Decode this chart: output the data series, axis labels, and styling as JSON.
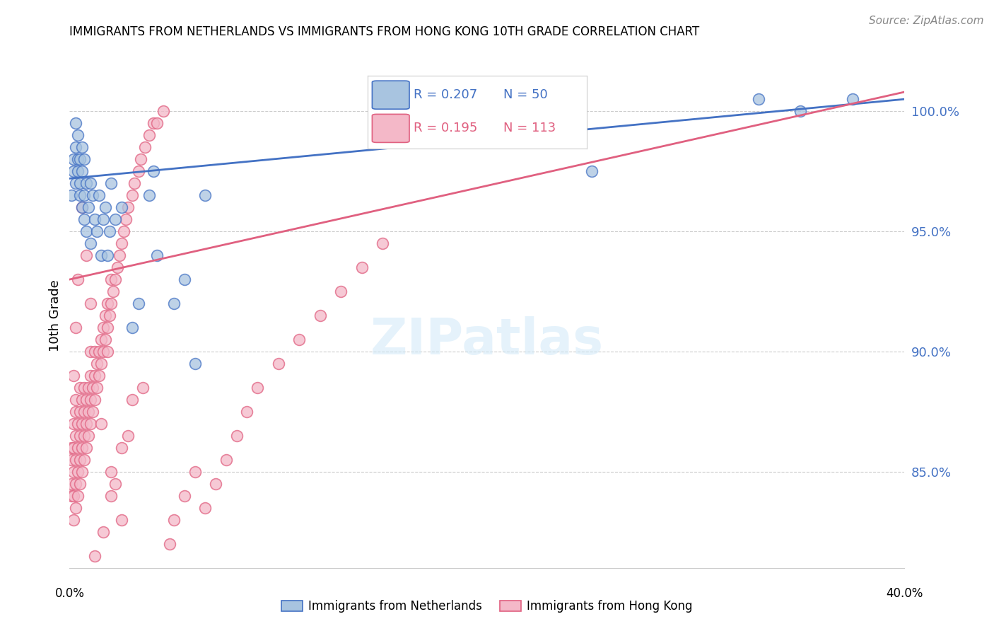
{
  "title": "IMMIGRANTS FROM NETHERLANDS VS IMMIGRANTS FROM HONG KONG 10TH GRADE CORRELATION CHART",
  "source": "Source: ZipAtlas.com",
  "ylabel": "10th Grade",
  "xlim": [
    0.0,
    0.4
  ],
  "ylim": [
    81.0,
    102.0
  ],
  "netherlands_color": "#a8c4e0",
  "netherlands_edge_color": "#4472c4",
  "hk_color": "#f4b8c8",
  "hk_edge_color": "#e06080",
  "netherlands_line_color": "#4472c4",
  "hk_line_color": "#e06080",
  "y_tick_vals": [
    85.0,
    90.0,
    95.0,
    100.0
  ],
  "y_tick_labels": [
    "85.0%",
    "90.0%",
    "95.0%",
    "100.0%"
  ],
  "nl_line_x": [
    0.0,
    0.4
  ],
  "nl_line_y": [
    97.2,
    100.5
  ],
  "hk_line_x": [
    0.0,
    0.4
  ],
  "hk_line_y": [
    93.0,
    100.8
  ],
  "netherlands_x": [
    0.001,
    0.002,
    0.002,
    0.003,
    0.003,
    0.003,
    0.004,
    0.004,
    0.004,
    0.005,
    0.005,
    0.005,
    0.006,
    0.006,
    0.006,
    0.007,
    0.007,
    0.007,
    0.008,
    0.008,
    0.009,
    0.01,
    0.01,
    0.011,
    0.012,
    0.013,
    0.014,
    0.015,
    0.016,
    0.017,
    0.018,
    0.019,
    0.02,
    0.022,
    0.025,
    0.03,
    0.033,
    0.038,
    0.04,
    0.042,
    0.05,
    0.055,
    0.06,
    0.065,
    0.15,
    0.18,
    0.25,
    0.33,
    0.35,
    0.375
  ],
  "netherlands_y": [
    96.5,
    97.5,
    98.0,
    97.0,
    98.5,
    99.5,
    97.5,
    98.0,
    99.0,
    96.5,
    97.0,
    98.0,
    96.0,
    97.5,
    98.5,
    95.5,
    96.5,
    98.0,
    95.0,
    97.0,
    96.0,
    94.5,
    97.0,
    96.5,
    95.5,
    95.0,
    96.5,
    94.0,
    95.5,
    96.0,
    94.0,
    95.0,
    97.0,
    95.5,
    96.0,
    91.0,
    92.0,
    96.5,
    97.5,
    94.0,
    92.0,
    93.0,
    89.5,
    96.5,
    100.0,
    100.0,
    97.5,
    100.5,
    100.0,
    100.5
  ],
  "hk_x": [
    0.001,
    0.001,
    0.001,
    0.001,
    0.002,
    0.002,
    0.002,
    0.002,
    0.002,
    0.003,
    0.003,
    0.003,
    0.003,
    0.003,
    0.003,
    0.004,
    0.004,
    0.004,
    0.004,
    0.005,
    0.005,
    0.005,
    0.005,
    0.005,
    0.006,
    0.006,
    0.006,
    0.006,
    0.007,
    0.007,
    0.007,
    0.007,
    0.008,
    0.008,
    0.008,
    0.009,
    0.009,
    0.009,
    0.01,
    0.01,
    0.01,
    0.01,
    0.011,
    0.011,
    0.012,
    0.012,
    0.012,
    0.013,
    0.013,
    0.014,
    0.014,
    0.015,
    0.015,
    0.016,
    0.016,
    0.017,
    0.017,
    0.018,
    0.018,
    0.019,
    0.02,
    0.02,
    0.021,
    0.022,
    0.023,
    0.024,
    0.025,
    0.026,
    0.027,
    0.028,
    0.03,
    0.031,
    0.033,
    0.034,
    0.036,
    0.038,
    0.04,
    0.042,
    0.045,
    0.048,
    0.05,
    0.055,
    0.06,
    0.065,
    0.07,
    0.075,
    0.08,
    0.085,
    0.09,
    0.1,
    0.11,
    0.12,
    0.13,
    0.14,
    0.15,
    0.02,
    0.025,
    0.03,
    0.018,
    0.01,
    0.008,
    0.006,
    0.004,
    0.003,
    0.002,
    0.015,
    0.02,
    0.025,
    0.012,
    0.016,
    0.022,
    0.028,
    0.035
  ],
  "hk_y": [
    84.0,
    84.5,
    85.5,
    86.0,
    83.0,
    84.0,
    85.0,
    86.0,
    87.0,
    83.5,
    84.5,
    85.5,
    86.5,
    87.5,
    88.0,
    84.0,
    85.0,
    86.0,
    87.0,
    84.5,
    85.5,
    86.5,
    87.5,
    88.5,
    85.0,
    86.0,
    87.0,
    88.0,
    85.5,
    86.5,
    87.5,
    88.5,
    86.0,
    87.0,
    88.0,
    86.5,
    87.5,
    88.5,
    87.0,
    88.0,
    89.0,
    90.0,
    87.5,
    88.5,
    88.0,
    89.0,
    90.0,
    88.5,
    89.5,
    89.0,
    90.0,
    89.5,
    90.5,
    90.0,
    91.0,
    90.5,
    91.5,
    91.0,
    92.0,
    91.5,
    92.0,
    93.0,
    92.5,
    93.0,
    93.5,
    94.0,
    94.5,
    95.0,
    95.5,
    96.0,
    96.5,
    97.0,
    97.5,
    98.0,
    98.5,
    99.0,
    99.5,
    99.5,
    100.0,
    82.0,
    83.0,
    84.0,
    85.0,
    83.5,
    84.5,
    85.5,
    86.5,
    87.5,
    88.5,
    89.5,
    90.5,
    91.5,
    92.5,
    93.5,
    94.5,
    84.0,
    86.0,
    88.0,
    90.0,
    92.0,
    94.0,
    96.0,
    93.0,
    91.0,
    89.0,
    87.0,
    85.0,
    83.0,
    81.5,
    82.5,
    84.5,
    86.5,
    88.5
  ]
}
